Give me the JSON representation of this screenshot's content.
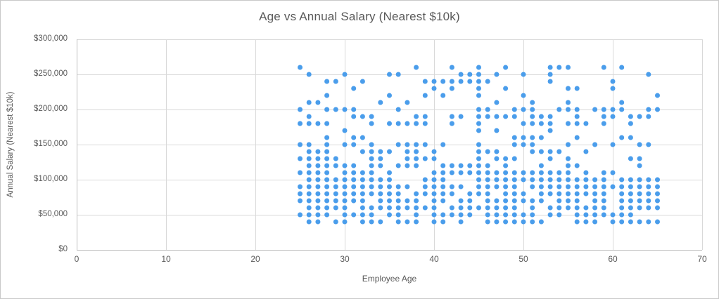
{
  "chart_data": {
    "type": "scatter",
    "title": "Age vs Annual Salary (Nearest $10k)",
    "xlabel": "Employee Age",
    "ylabel": "Annual Salary (Nearest $10k)",
    "xlim": [
      0,
      70
    ],
    "ylim": [
      0,
      300000
    ],
    "grid": true,
    "legend": "none",
    "x_ticks": [
      {
        "v": 0,
        "label": "0"
      },
      {
        "v": 10,
        "label": "10"
      },
      {
        "v": 20,
        "label": "20"
      },
      {
        "v": 30,
        "label": "30"
      },
      {
        "v": 40,
        "label": "40"
      },
      {
        "v": 50,
        "label": "50"
      },
      {
        "v": 60,
        "label": "60"
      },
      {
        "v": 70,
        "label": "70"
      }
    ],
    "y_ticks": [
      {
        "v": 0,
        "label": "$0"
      },
      {
        "v": 50000,
        "label": "$50,000"
      },
      {
        "v": 100000,
        "label": "$100,000"
      },
      {
        "v": 150000,
        "label": "$150,000"
      },
      {
        "v": 200000,
        "label": "$200,000"
      },
      {
        "v": 250000,
        "label": "$250,000"
      },
      {
        "v": 300000,
        "label": "$300,000"
      }
    ],
    "colors": {
      "dot": "#4a9deb",
      "grid": "#d9d9d9",
      "axis": "#bfbfbf",
      "text": "#595959"
    },
    "marker_radius_px": 3.5,
    "points_by_age": [
      {
        "x": 25,
        "salary_k_values": [
          260,
          200,
          180,
          150,
          130,
          110,
          90,
          80,
          70,
          50
        ]
      },
      {
        "x": 26,
        "salary_k_values": [
          250,
          210,
          190,
          180,
          150,
          140,
          130,
          120,
          110,
          100,
          90,
          80,
          70,
          60,
          50,
          40
        ]
      },
      {
        "x": 27,
        "salary_k_values": [
          210,
          180,
          140,
          130,
          120,
          110,
          100,
          90,
          80,
          70,
          60,
          50,
          40
        ]
      },
      {
        "x": 28,
        "salary_k_values": [
          240,
          220,
          200,
          180,
          160,
          150,
          140,
          130,
          120,
          110,
          100,
          90,
          80,
          70,
          60,
          50
        ]
      },
      {
        "x": 29,
        "salary_k_values": [
          240,
          200,
          130,
          120,
          100,
          90,
          80,
          70,
          60,
          40
        ]
      },
      {
        "x": 30,
        "salary_k_values": [
          250,
          200,
          170,
          150,
          120,
          110,
          100,
          90,
          80,
          70,
          60,
          50,
          40
        ]
      },
      {
        "x": 31,
        "salary_k_values": [
          230,
          200,
          190,
          160,
          150,
          120,
          110,
          100,
          90,
          80,
          70,
          50
        ]
      },
      {
        "x": 32,
        "salary_k_values": [
          240,
          190,
          160,
          140,
          110,
          100,
          90,
          80,
          70,
          60,
          50,
          40
        ]
      },
      {
        "x": 33,
        "salary_k_values": [
          190,
          180,
          150,
          140,
          130,
          120,
          110,
          100,
          90,
          80,
          60,
          50,
          40
        ]
      },
      {
        "x": 34,
        "salary_k_values": [
          210,
          140,
          130,
          120,
          100,
          90,
          80,
          70,
          60,
          40
        ]
      },
      {
        "x": 35,
        "salary_k_values": [
          250,
          220,
          180,
          140,
          110,
          100,
          90,
          80,
          70,
          60,
          50
        ]
      },
      {
        "x": 36,
        "salary_k_values": [
          250,
          200,
          180,
          150,
          120,
          90,
          80,
          70,
          60,
          50,
          40
        ]
      },
      {
        "x": 37,
        "salary_k_values": [
          210,
          180,
          150,
          140,
          130,
          120,
          90,
          70,
          60,
          40
        ]
      },
      {
        "x": 38,
        "salary_k_values": [
          260,
          190,
          180,
          150,
          140,
          130,
          120,
          80,
          70,
          60,
          50,
          40
        ]
      },
      {
        "x": 39,
        "salary_k_values": [
          240,
          220,
          190,
          180,
          150,
          130,
          100,
          90,
          80,
          60
        ]
      },
      {
        "x": 40,
        "salary_k_values": [
          240,
          230,
          140,
          130,
          110,
          100,
          90,
          80,
          70,
          60,
          50,
          40
        ]
      },
      {
        "x": 41,
        "salary_k_values": [
          240,
          220,
          150,
          120,
          110,
          100,
          90,
          80,
          70,
          50,
          40
        ]
      },
      {
        "x": 42,
        "salary_k_values": [
          260,
          240,
          230,
          190,
          180,
          120,
          110,
          90,
          80,
          60,
          50
        ]
      },
      {
        "x": 43,
        "salary_k_values": [
          250,
          240,
          190,
          120,
          110,
          90,
          70,
          60,
          50,
          40
        ]
      },
      {
        "x": 44,
        "salary_k_values": [
          250,
          240,
          120,
          110,
          80,
          70,
          60,
          50
        ]
      },
      {
        "x": 45,
        "salary_k_values": [
          260,
          250,
          240,
          230,
          220,
          200,
          190,
          180,
          170,
          150,
          140,
          130,
          120,
          110,
          100,
          90,
          80,
          60
        ]
      },
      {
        "x": 46,
        "salary_k_values": [
          240,
          200,
          190,
          140,
          120,
          110,
          100,
          90,
          80,
          70,
          60,
          50,
          40
        ]
      },
      {
        "x": 47,
        "salary_k_values": [
          250,
          210,
          190,
          170,
          140,
          130,
          110,
          100,
          90,
          70,
          60,
          50,
          40
        ]
      },
      {
        "x": 48,
        "salary_k_values": [
          260,
          230,
          190,
          130,
          120,
          110,
          100,
          90,
          80,
          70,
          60,
          50,
          40
        ]
      },
      {
        "x": 49,
        "salary_k_values": [
          200,
          190,
          160,
          150,
          130,
          110,
          100,
          90,
          80,
          70,
          60,
          50,
          40
        ]
      },
      {
        "x": 50,
        "salary_k_values": [
          250,
          220,
          200,
          180,
          160,
          150,
          110,
          100,
          80,
          70,
          50,
          40
        ]
      },
      {
        "x": 51,
        "salary_k_values": [
          210,
          200,
          190,
          180,
          160,
          150,
          140,
          110,
          100,
          90,
          70,
          60,
          50,
          40
        ]
      },
      {
        "x": 52,
        "salary_k_values": [
          190,
          180,
          160,
          140,
          120,
          110,
          100,
          90,
          80,
          70,
          40
        ]
      },
      {
        "x": 53,
        "salary_k_values": [
          260,
          250,
          240,
          190,
          180,
          170,
          140,
          130,
          110,
          100,
          90,
          80,
          60,
          50
        ]
      },
      {
        "x": 54,
        "salary_k_values": [
          260,
          200,
          140,
          110,
          100,
          90,
          80,
          70,
          60,
          50
        ]
      },
      {
        "x": 55,
        "salary_k_values": [
          260,
          230,
          210,
          200,
          180,
          150,
          130,
          120,
          110,
          100,
          90,
          80,
          70,
          60
        ]
      },
      {
        "x": 56,
        "salary_k_values": [
          230,
          200,
          190,
          180,
          160,
          120,
          100,
          90,
          80,
          70,
          60,
          50,
          40
        ]
      },
      {
        "x": 57,
        "salary_k_values": [
          180,
          140,
          110,
          100,
          90,
          80,
          60,
          50,
          40
        ]
      },
      {
        "x": 58,
        "salary_k_values": [
          200,
          150,
          100,
          90,
          80,
          70,
          60,
          50,
          40
        ]
      },
      {
        "x": 59,
        "salary_k_values": [
          260,
          200,
          190,
          180,
          110,
          100,
          90,
          80,
          70,
          60,
          50
        ]
      },
      {
        "x": 60,
        "salary_k_values": [
          240,
          230,
          200,
          190,
          150,
          110,
          90,
          50,
          40
        ]
      },
      {
        "x": 61,
        "salary_k_values": [
          260,
          210,
          200,
          160,
          100,
          90,
          80,
          70,
          60,
          50,
          40
        ]
      },
      {
        "x": 62,
        "salary_k_values": [
          190,
          180,
          160,
          130,
          100,
          90,
          80,
          70,
          60,
          50,
          40
        ]
      },
      {
        "x": 63,
        "salary_k_values": [
          190,
          150,
          130,
          120,
          100,
          90,
          80,
          70,
          60,
          40
        ]
      },
      {
        "x": 64,
        "salary_k_values": [
          250,
          200,
          190,
          150,
          100,
          90,
          80,
          70,
          60,
          40
        ]
      },
      {
        "x": 65,
        "salary_k_values": [
          220,
          200,
          100,
          90,
          80,
          70,
          60,
          40
        ]
      }
    ]
  }
}
